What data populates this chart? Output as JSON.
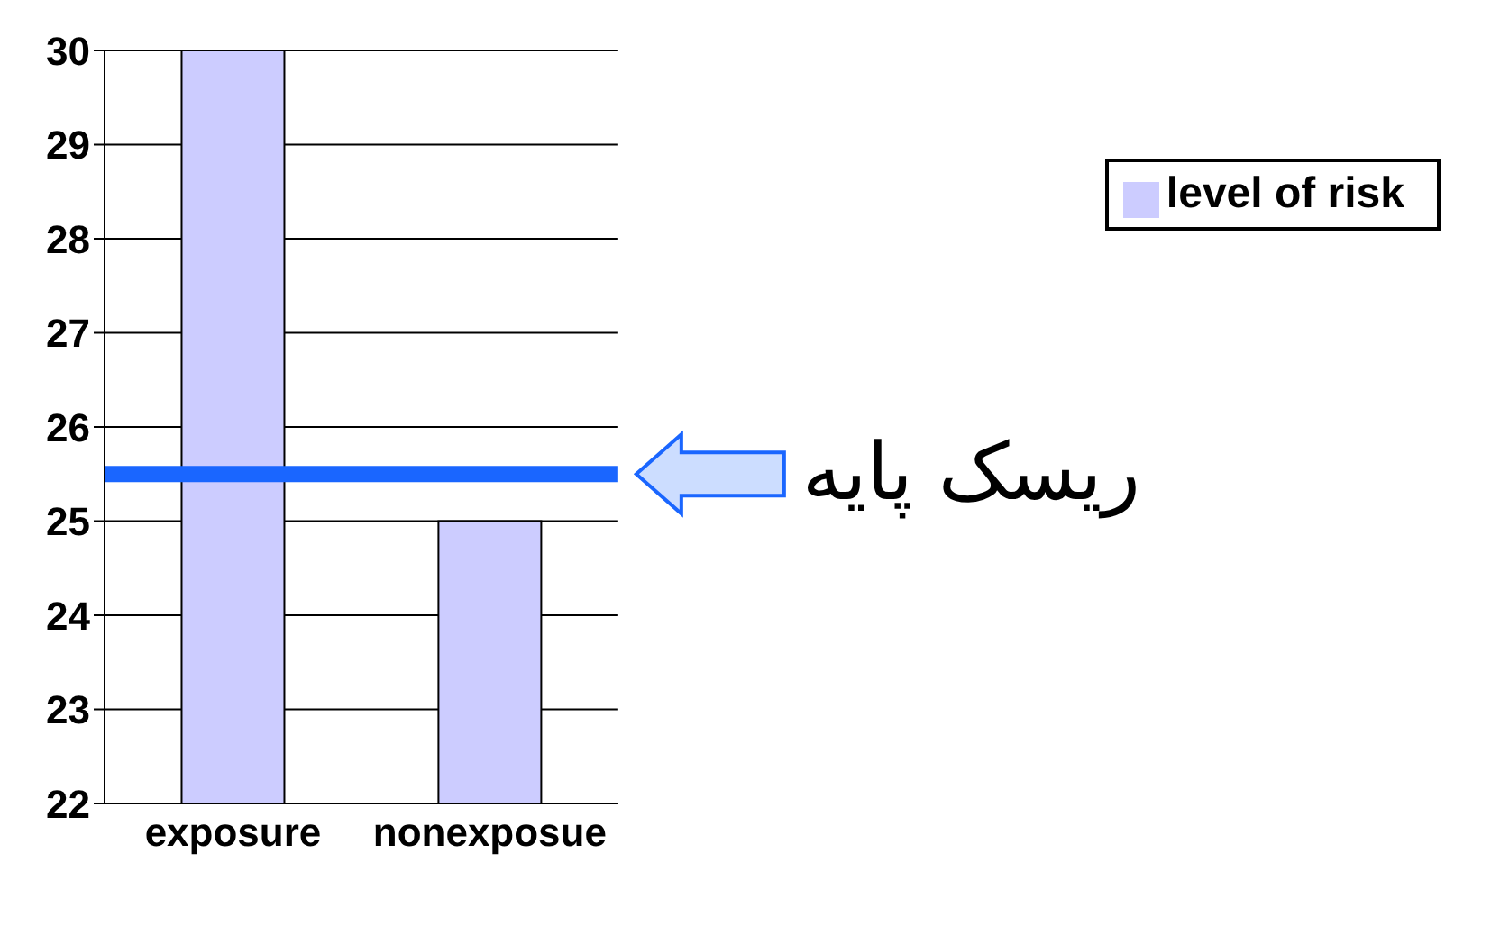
{
  "chart_data": {
    "type": "bar",
    "categories": [
      "exposure",
      "nonexposue"
    ],
    "series": [
      {
        "name": "level of risk",
        "color": "#ccccff",
        "values": [
          30,
          25
        ]
      }
    ],
    "ylim": [
      22,
      30
    ],
    "yticks": [
      22,
      23,
      24,
      25,
      26,
      27,
      28,
      29,
      30
    ],
    "grid": "y",
    "legend": "right",
    "ref_lines": [
      {
        "axis": "y",
        "value": 25.5,
        "label": "ریسک پایه",
        "color": "#1a66ff"
      }
    ]
  }
}
